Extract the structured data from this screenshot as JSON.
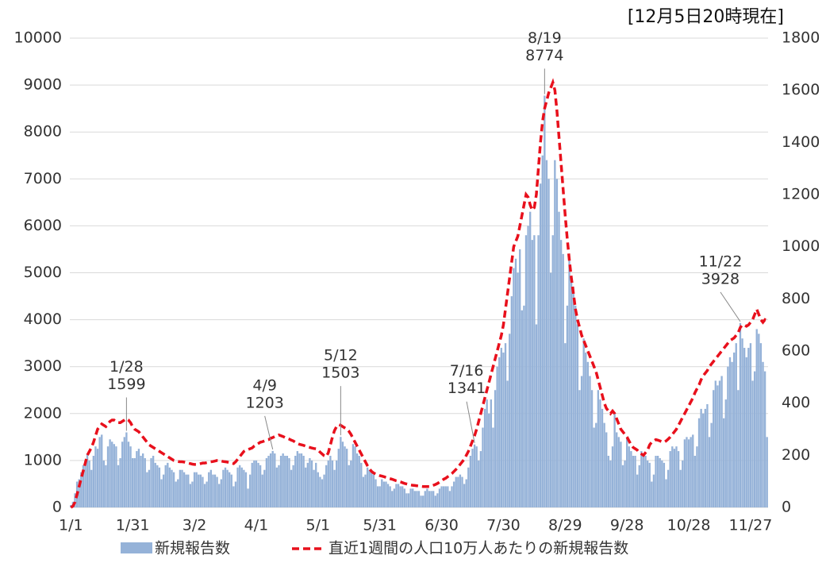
{
  "chart_data": {
    "type": "bar-line",
    "note": "[12月5日20時現在]",
    "categories": [
      "1/1",
      null,
      null,
      null,
      null,
      null,
      null,
      null,
      null,
      null,
      null,
      null,
      null,
      null,
      null,
      null,
      null,
      null,
      null,
      null,
      null,
      null,
      null,
      null,
      null,
      null,
      null,
      null,
      null,
      null,
      "1/31",
      null,
      null,
      null,
      null,
      null,
      null,
      null,
      null,
      null,
      null,
      null,
      null,
      null,
      null,
      null,
      null,
      null,
      null,
      null,
      null,
      null,
      null,
      null,
      null,
      null,
      null,
      null,
      null,
      null,
      "3/2",
      null,
      null,
      null,
      null,
      null,
      null,
      null,
      null,
      null,
      null,
      null,
      null,
      null,
      null,
      null,
      null,
      null,
      null,
      null,
      null,
      null,
      null,
      null,
      null,
      null,
      null,
      null,
      null,
      null,
      "4/1",
      null,
      null,
      null,
      null,
      null,
      null,
      null,
      null,
      null,
      null,
      null,
      null,
      null,
      null,
      null,
      null,
      null,
      null,
      null,
      null,
      null,
      null,
      null,
      null,
      null,
      null,
      null,
      null,
      null,
      "5/1",
      null,
      null,
      null,
      null,
      null,
      null,
      null,
      null,
      null,
      null,
      null,
      null,
      null,
      null,
      null,
      null,
      null,
      null,
      null,
      null,
      null,
      null,
      null,
      null,
      null,
      null,
      null,
      null,
      null,
      "5/31",
      null,
      null,
      null,
      null,
      null,
      null,
      null,
      null,
      null,
      null,
      null,
      null,
      null,
      null,
      null,
      null,
      null,
      null,
      null,
      null,
      null,
      null,
      null,
      null,
      null,
      null,
      null,
      null,
      null,
      "6/30",
      null,
      null,
      null,
      null,
      null,
      null,
      null,
      null,
      null,
      null,
      null,
      null,
      null,
      null,
      null,
      null,
      null,
      null,
      null,
      null,
      null,
      null,
      null,
      null,
      null,
      null,
      null,
      null,
      null,
      "7/30",
      null,
      null,
      null,
      null,
      null,
      null,
      null,
      null,
      null,
      null,
      null,
      null,
      null,
      null,
      null,
      null,
      null,
      null,
      null,
      null,
      null,
      null,
      null,
      null,
      null,
      null,
      null,
      null,
      null,
      "8/29",
      null,
      null,
      null,
      null,
      null,
      null,
      null,
      null,
      null,
      null,
      null,
      null,
      null,
      null,
      null,
      null,
      null,
      null,
      null,
      null,
      null,
      null,
      null,
      null,
      null,
      null,
      null,
      null,
      null,
      "9/28",
      null,
      null,
      null,
      null,
      null,
      null,
      null,
      null,
      null,
      null,
      null,
      null,
      null,
      null,
      null,
      null,
      null,
      null,
      null,
      null,
      null,
      null,
      null,
      null,
      null,
      null,
      null,
      null,
      null,
      "10/28",
      null,
      null,
      null,
      null,
      null,
      null,
      null,
      null,
      null,
      null,
      null,
      null,
      null,
      null,
      null,
      null,
      null,
      null,
      null,
      null,
      null,
      null,
      null,
      null,
      null,
      null,
      null,
      null,
      null,
      "11/27",
      null,
      null,
      null,
      null,
      null,
      null,
      null,
      null
    ],
    "series": [
      {
        "name": "新規報告数",
        "color": "#95b2d8",
        "kind": "bar",
        "values": [
          50,
          120,
          300,
          550,
          600,
          750,
          900,
          1000,
          1150,
          1000,
          800,
          1100,
          1300,
          1250,
          1500,
          1550,
          1000,
          900,
          1300,
          1450,
          1400,
          1350,
          1300,
          900,
          1050,
          1400,
          1500,
          1599,
          1400,
          1300,
          1050,
          1050,
          1200,
          1250,
          1100,
          1150,
          1050,
          750,
          800,
          1050,
          1100,
          950,
          900,
          850,
          600,
          700,
          900,
          950,
          850,
          800,
          750,
          550,
          600,
          800,
          800,
          750,
          700,
          700,
          500,
          550,
          750,
          750,
          700,
          700,
          650,
          500,
          550,
          750,
          800,
          700,
          700,
          650,
          500,
          600,
          800,
          850,
          800,
          750,
          700,
          450,
          550,
          850,
          900,
          850,
          800,
          750,
          400,
          700,
          950,
          1000,
          1000,
          950,
          900,
          700,
          800,
          1050,
          1100,
          1150,
          1203,
          1150,
          850,
          900,
          1100,
          1150,
          1100,
          1100,
          1050,
          800,
          900,
          1100,
          1200,
          1150,
          1150,
          1100,
          850,
          950,
          1050,
          1000,
          800,
          950,
          750,
          650,
          600,
          700,
          900,
          1000,
          1100,
          1000,
          800,
          1000,
          1250,
          1503,
          1400,
          1300,
          1250,
          900,
          1000,
          1350,
          1300,
          1150,
          1100,
          950,
          650,
          700,
          850,
          800,
          750,
          700,
          600,
          450,
          450,
          600,
          550,
          550,
          500,
          450,
          350,
          400,
          500,
          500,
          450,
          450,
          400,
          300,
          300,
          400,
          400,
          350,
          350,
          350,
          250,
          250,
          350,
          400,
          350,
          350,
          350,
          250,
          300,
          400,
          450,
          450,
          450,
          450,
          350,
          450,
          550,
          650,
          650,
          700,
          650,
          500,
          600,
          850,
          1100,
          1250,
          1341,
          1300,
          1000,
          1200,
          1700,
          2100,
          2300,
          2000,
          2300,
          1700,
          2500,
          3000,
          3200,
          3400,
          3300,
          3500,
          2700,
          3700,
          4500,
          5100,
          5300,
          5000,
          5500,
          4200,
          4300,
          5800,
          6000,
          6300,
          5700,
          5800,
          3900,
          5800,
          6900,
          7500,
          8774,
          7400,
          7000,
          5000,
          5800,
          7400,
          7000,
          6300,
          5700,
          5400,
          3500,
          4300,
          5300,
          4900,
          4700,
          4300,
          3900,
          2500,
          2800,
          3600,
          3300,
          3100,
          2800,
          2500,
          1700,
          1800,
          2500,
          2300,
          2100,
          1800,
          1600,
          1100,
          1000,
          1300,
          2000,
          1600,
          1500,
          1400,
          900,
          1000,
          1500,
          1300,
          1200,
          1100,
          1100,
          700,
          900,
          1200,
          1150,
          1100,
          1000,
          950,
          550,
          700,
          1100,
          1100,
          1050,
          1000,
          950,
          600,
          800,
          1200,
          1300,
          1250,
          1300,
          1200,
          800,
          1000,
          1450,
          1500,
          1450,
          1500,
          1550,
          1100,
          1300,
          1900,
          2100,
          2000,
          2100,
          2200,
          1500,
          1800,
          2500,
          2700,
          2600,
          2700,
          2800,
          1900,
          2300,
          3000,
          3200,
          3100,
          3300,
          3500,
          2500,
          3928,
          3600,
          3400,
          3200,
          3400,
          3500,
          2700,
          2900,
          3800,
          3700,
          3500,
          3100,
          2900,
          1500
        ]
      },
      {
        "name": "直近1週間の人口10万人あたりの新規報告数",
        "color": "#e8101c",
        "kind": "line",
        "axis": "y2",
        "values": [
          0,
          5,
          20,
          50,
          80,
          110,
          140,
          170,
          200,
          215,
          230,
          250,
          275,
          300,
          310,
          320,
          315,
          310,
          320,
          330,
          335,
          335,
          330,
          325,
          325,
          330,
          335,
          340,
          335,
          325,
          310,
          300,
          295,
          290,
          280,
          270,
          260,
          250,
          240,
          235,
          230,
          225,
          220,
          215,
          210,
          205,
          200,
          195,
          190,
          185,
          180,
          178,
          176,
          175,
          175,
          174,
          172,
          170,
          168,
          166,
          165,
          165,
          166,
          168,
          170,
          170,
          172,
          174,
          175,
          176,
          178,
          180,
          180,
          178,
          176,
          175,
          174,
          172,
          170,
          168,
          175,
          185,
          195,
          205,
          215,
          220,
          222,
          225,
          228,
          235,
          240,
          245,
          250,
          252,
          255,
          258,
          260,
          265,
          268,
          272,
          275,
          278,
          275,
          272,
          268,
          265,
          262,
          258,
          255,
          250,
          245,
          242,
          240,
          238,
          235,
          232,
          230,
          228,
          226,
          225,
          220,
          212,
          205,
          198,
          195,
          210,
          240,
          270,
          295,
          310,
          318,
          315,
          310,
          305,
          300,
          292,
          280,
          265,
          250,
          235,
          220,
          205,
          190,
          175,
          160,
          148,
          138,
          132,
          128,
          125,
          122,
          120,
          118,
          115,
          112,
          110,
          108,
          105,
          102,
          100,
          98,
          95,
          92,
          90,
          88,
          86,
          85,
          84,
          83,
          82,
          81,
          80,
          80,
          80,
          80,
          82,
          85,
          88,
          92,
          97,
          102,
          108,
          112,
          118,
          124,
          130,
          138,
          146,
          155,
          165,
          175,
          185,
          200,
          215,
          235,
          255,
          275,
          300,
          330,
          360,
          390,
          420,
          450,
          480,
          510,
          540,
          570,
          600,
          630,
          660,
          700,
          760,
          820,
          880,
          940,
          1000,
          1020,
          1040,
          1080,
          1120,
          1160,
          1200,
          1190,
          1160,
          1140,
          1150,
          1200,
          1300,
          1400,
          1480,
          1530,
          1560,
          1590,
          1610,
          1630,
          1600,
          1520,
          1420,
          1320,
          1220,
          1120,
          1030,
          950,
          880,
          820,
          760,
          720,
          690,
          660,
          640,
          620,
          600,
          580,
          560,
          540,
          520,
          490,
          460,
          430,
          400,
          380,
          370,
          360,
          370,
          360,
          340,
          320,
          300,
          290,
          280,
          270,
          255,
          240,
          230,
          225,
          220,
          210,
          205,
          200,
          210,
          220,
          240,
          250,
          255,
          260,
          258,
          255,
          252,
          250,
          255,
          262,
          270,
          280,
          290,
          300,
          315,
          330,
          345,
          360,
          375,
          390,
          405,
          420,
          440,
          455,
          470,
          490,
          505,
          515,
          525,
          540,
          550,
          560,
          570,
          580,
          590,
          600,
          610,
          620,
          630,
          640,
          645,
          650,
          660,
          670,
          690,
          700,
          700,
          695,
          700,
          710,
          720,
          740,
          760,
          740,
          720,
          710,
          720,
          715
        ]
      }
    ],
    "annotations": [
      {
        "label": "1/28",
        "value": 1599
      },
      {
        "label": "4/9",
        "value": 1203
      },
      {
        "label": "5/12",
        "value": 1503
      },
      {
        "label": "7/16",
        "value": 1341
      },
      {
        "label": "8/19",
        "value": 8774
      },
      {
        "label": "11/22",
        "value": 3928
      }
    ],
    "ylim": [
      0,
      10000
    ],
    "yticks": [
      0,
      1000,
      2000,
      3000,
      4000,
      5000,
      6000,
      7000,
      8000,
      9000,
      10000
    ],
    "y2lim": [
      0,
      1800
    ],
    "y2ticks": [
      0,
      200,
      400,
      600,
      800,
      1000,
      1200,
      1400,
      1600,
      1800
    ],
    "grid": true
  }
}
